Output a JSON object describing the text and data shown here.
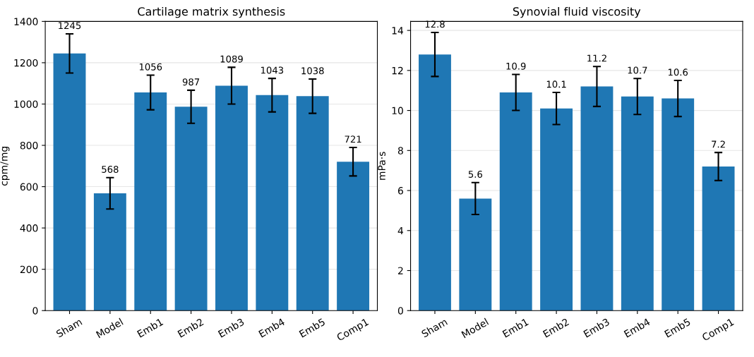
{
  "chart_data": [
    {
      "type": "bar",
      "title": "Cartilage matrix synthesis",
      "ylabel": "cpm/mg",
      "categories": [
        "Sham",
        "Model",
        "Emb1",
        "Emb2",
        "Emb3",
        "Emb4",
        "Emb5",
        "Comp1"
      ],
      "values": [
        1245,
        568,
        1056,
        987,
        1089,
        1043,
        1038,
        721
      ],
      "errors": [
        95,
        76,
        84,
        80,
        89,
        81,
        83,
        69
      ],
      "color": "#1f77b4",
      "data_labels": true,
      "ylim": [
        0,
        1400
      ],
      "yticks": [
        0,
        200,
        400,
        600,
        800,
        1000,
        1200,
        1400
      ],
      "grid": "y"
    },
    {
      "type": "bar",
      "title": "Synovial fluid viscosity",
      "ylabel": "mPa·s",
      "categories": [
        "Sham",
        "Model",
        "Emb1",
        "Emb2",
        "Emb3",
        "Emb4",
        "Emb5",
        "Comp1"
      ],
      "values": [
        12.8,
        5.6,
        10.9,
        10.1,
        11.2,
        10.7,
        10.6,
        7.2
      ],
      "errors": [
        1.1,
        0.8,
        0.9,
        0.8,
        1.0,
        0.9,
        0.9,
        0.7
      ],
      "color": "#1f77b4",
      "data_labels": true,
      "ylim": [
        0,
        14.45
      ],
      "yticks": [
        0,
        2,
        4,
        6,
        8,
        10,
        12,
        14
      ],
      "grid": "y"
    }
  ]
}
